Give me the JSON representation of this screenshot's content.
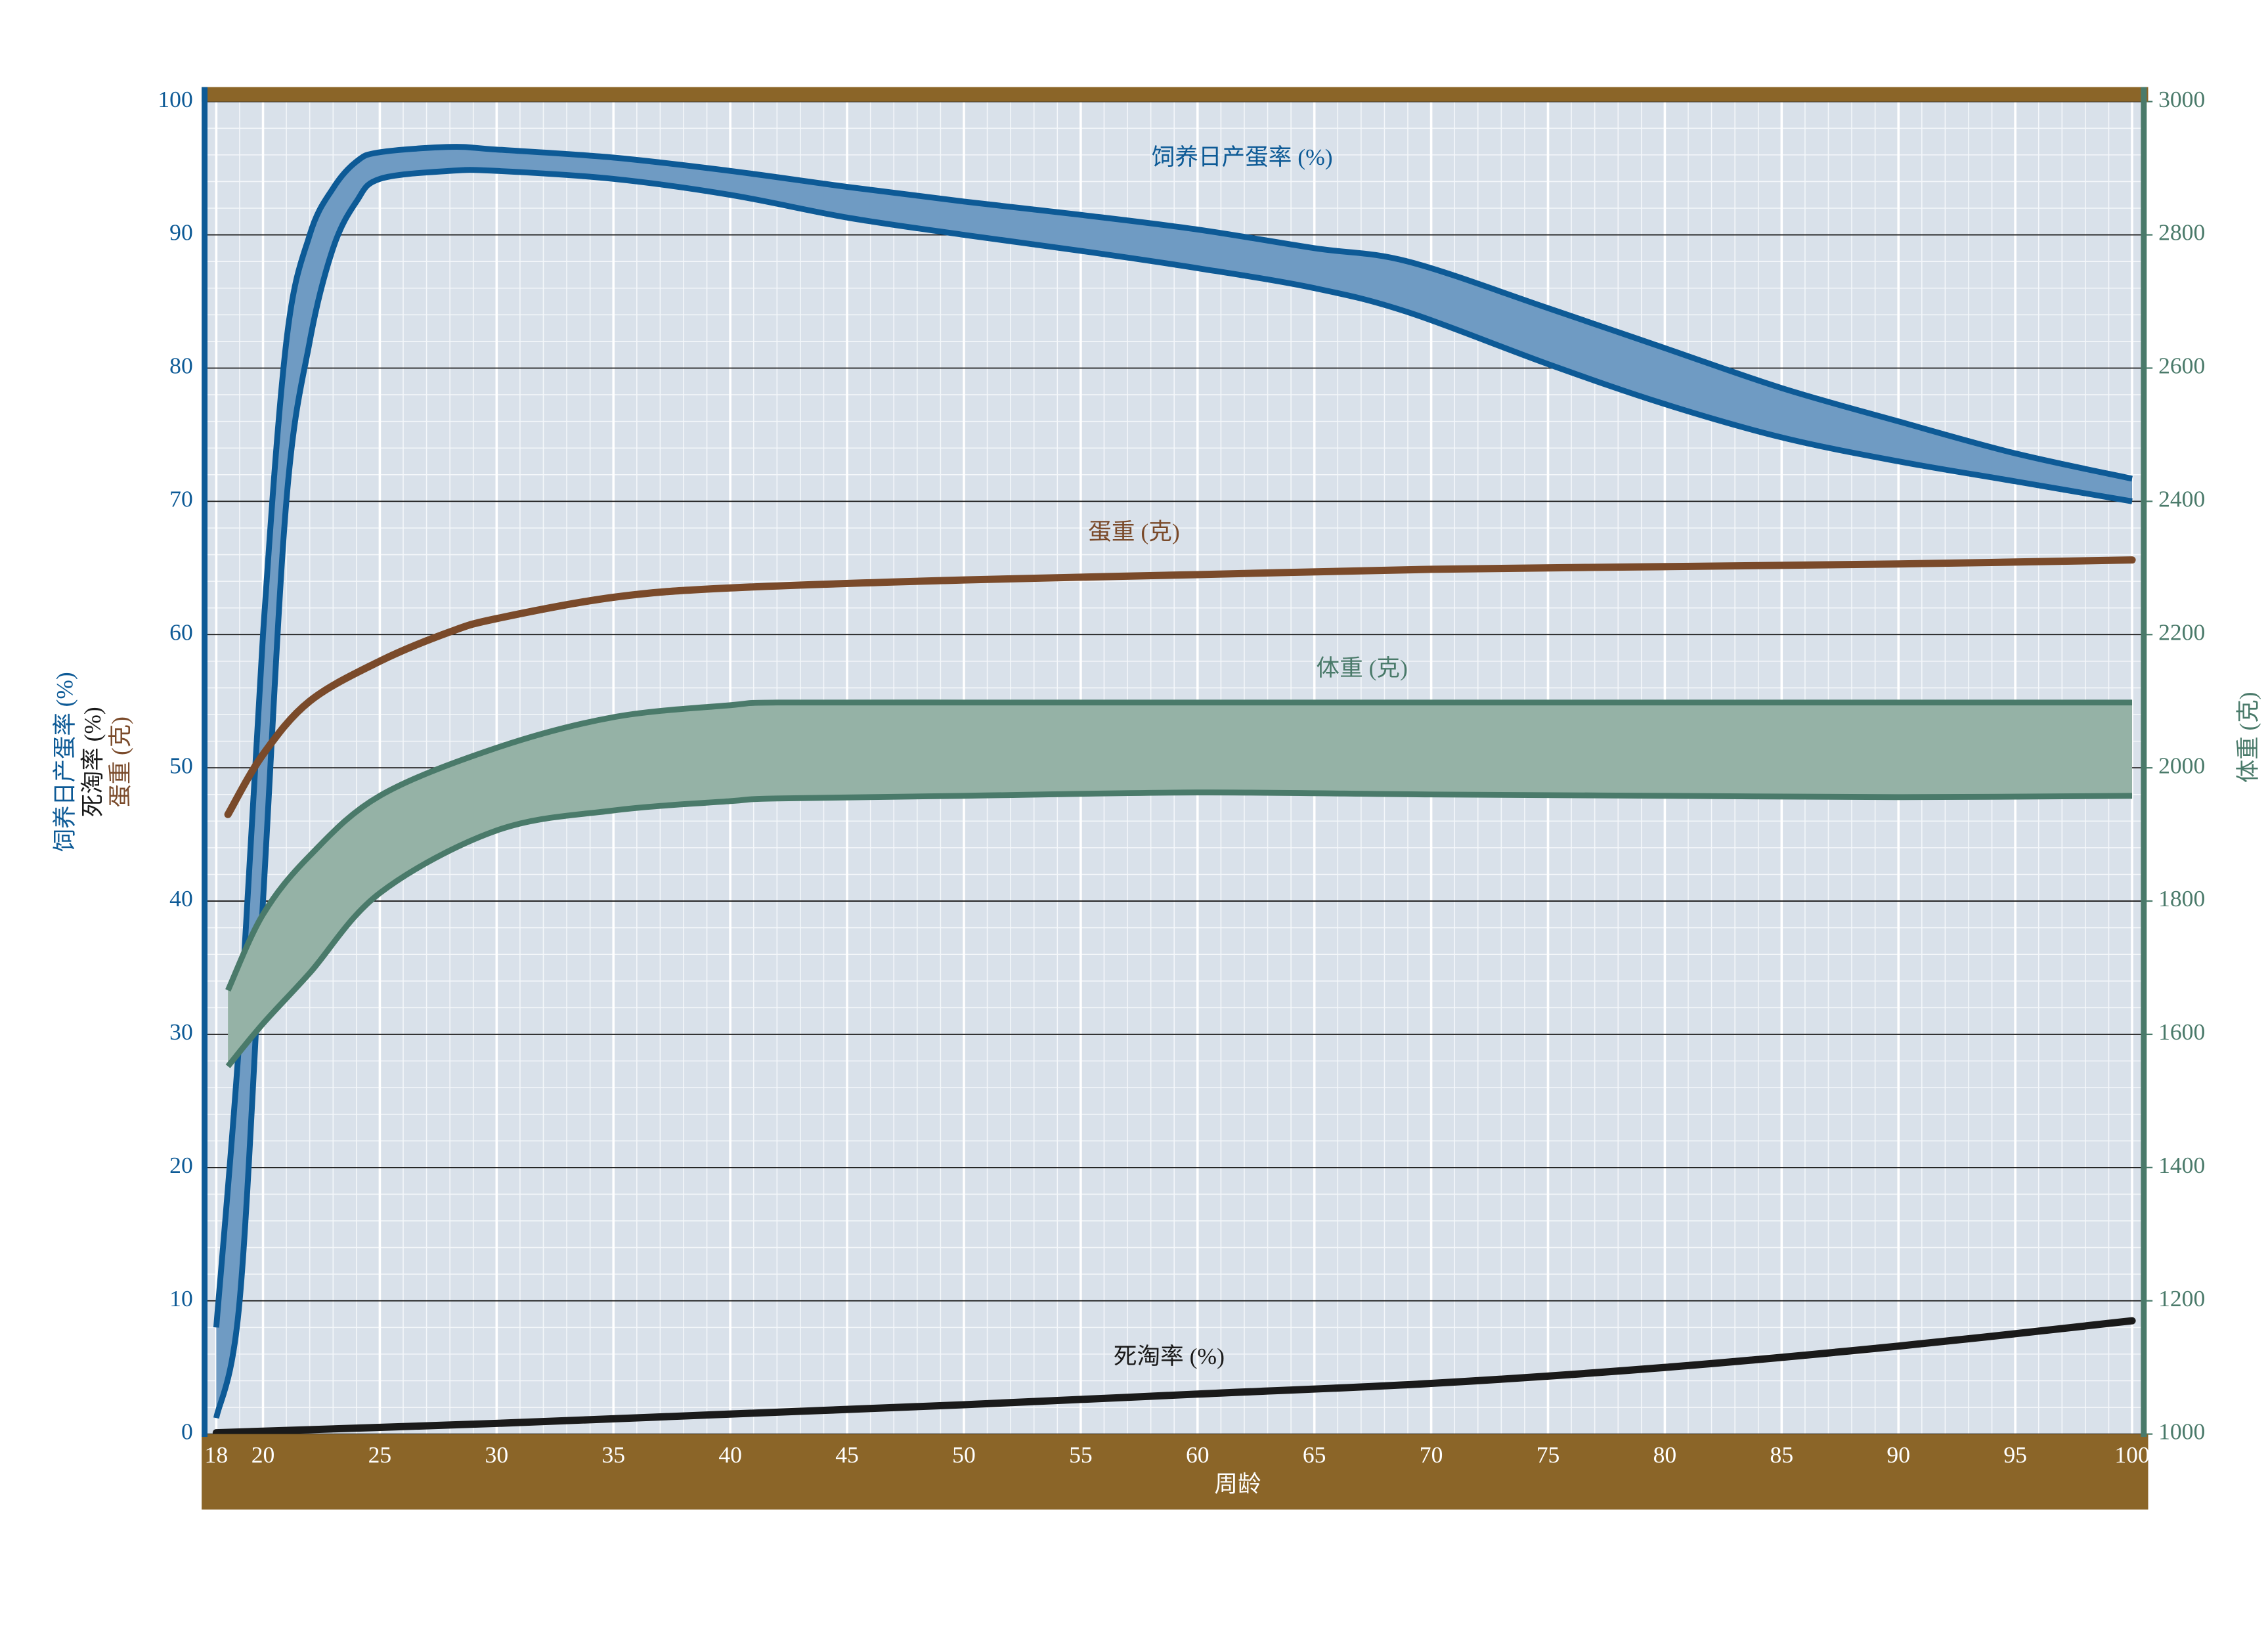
{
  "chart_data": {
    "type": "band-line",
    "x_label": "周龄",
    "y_label": [
      {
        "text": "饲养日产蛋率 (%)",
        "color": "#0d5a96"
      },
      {
        "text": "死淘率 (%)",
        "color": "#1a1a1a"
      },
      {
        "text": "蛋重 (克)",
        "color": "#7a4a2a"
      }
    ],
    "y2_label": "体重 (克)",
    "xlim": [
      17.5,
      100.5
    ],
    "xticks": [
      18,
      20,
      25,
      30,
      35,
      40,
      45,
      50,
      55,
      60,
      65,
      70,
      75,
      80,
      85,
      90,
      95,
      100
    ],
    "ylim": [
      0,
      100
    ],
    "yticks": [
      0,
      10,
      20,
      30,
      40,
      50,
      60,
      70,
      80,
      90,
      100
    ],
    "y2lim": [
      1000,
      3000
    ],
    "y2ticks": [
      1000,
      1200,
      1400,
      1600,
      1800,
      2000,
      2200,
      2400,
      2600,
      2800,
      3000
    ],
    "grid": true,
    "series": [
      {
        "name": "饲养日产蛋率 (%)",
        "kind": "band",
        "color": "#0d5a96",
        "fill": "#6f9bc3",
        "x": [
          18,
          19,
          20,
          21,
          22,
          23,
          24,
          25,
          28,
          30,
          35,
          40,
          45,
          50,
          55,
          60,
          65,
          69,
          75,
          80,
          85,
          90,
          95,
          100
        ],
        "upper": [
          8,
          30,
          60,
          82,
          90,
          93.5,
          95.5,
          96.2,
          96.6,
          96.4,
          95.8,
          94.8,
          93.6,
          92.5,
          91.5,
          90.4,
          89,
          88,
          84.5,
          81.5,
          78.5,
          76,
          73.6,
          71.7
        ],
        "lower": [
          1.2,
          10,
          40,
          70,
          82,
          89,
          92.5,
          94.2,
          94.8,
          94.8,
          94.2,
          93,
          91.3,
          90,
          88.8,
          87.5,
          86,
          84.2,
          80.3,
          77.3,
          74.8,
          73,
          71.5,
          70
        ]
      },
      {
        "name": "蛋重 (克)",
        "kind": "line",
        "color": "#7a4a2a",
        "x": [
          18.5,
          20,
          22,
          25,
          28,
          30,
          35,
          40,
          50,
          60,
          70,
          80,
          90,
          100
        ],
        "values": [
          46.5,
          51,
          55,
          58,
          60.2,
          61.2,
          62.8,
          63.5,
          64.1,
          64.5,
          64.9,
          65.1,
          65.3,
          65.6
        ]
      },
      {
        "name": "体重 (克)",
        "kind": "band",
        "axis": "y2",
        "color": "#4a7a6a",
        "fill": "#95b2a6",
        "x": [
          18.5,
          20,
          22,
          25,
          30,
          35,
          40,
          42,
          50,
          60,
          70,
          80,
          90,
          100
        ],
        "upper": [
          1666,
          1780,
          1868,
          1958,
          2030,
          2076,
          2094,
          2098,
          2098,
          2098,
          2098,
          2098,
          2098,
          2098
        ],
        "lower": [
          1552,
          1616,
          1692,
          1812,
          1906,
          1936,
          1950,
          1954,
          1958,
          1963,
          1960,
          1958,
          1956,
          1958
        ]
      },
      {
        "name": "死淘率 (%)",
        "kind": "line",
        "color": "#1a1a1a",
        "x": [
          18,
          30,
          40,
          50,
          60,
          70,
          80,
          90,
          100
        ],
        "values": [
          0.1,
          0.8,
          1.5,
          2.2,
          3,
          3.8,
          5,
          6.6,
          8.5
        ]
      }
    ]
  }
}
